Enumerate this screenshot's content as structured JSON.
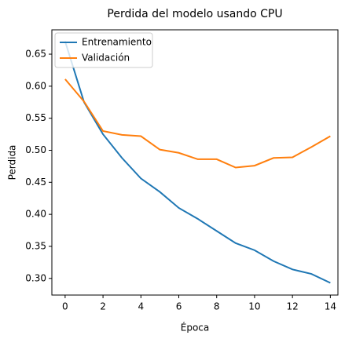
{
  "chart_data": {
    "type": "line",
    "title": "Perdida del modelo usando CPU",
    "xlabel": "Época",
    "ylabel": "Perdida",
    "x": [
      0,
      1,
      2,
      3,
      4,
      5,
      6,
      7,
      8,
      9,
      10,
      11,
      12,
      13,
      14
    ],
    "series": [
      {
        "name": "Entrenamiento",
        "color": "#1f77b4",
        "values": [
          0.67,
          0.575,
          0.525,
          0.488,
          0.456,
          0.435,
          0.41,
          0.393,
          0.374,
          0.355,
          0.344,
          0.327,
          0.314,
          0.307,
          0.293
        ]
      },
      {
        "name": "Validación",
        "color": "#ff7f0e",
        "values": [
          0.611,
          0.576,
          0.53,
          0.524,
          0.522,
          0.501,
          0.496,
          0.486,
          0.486,
          0.473,
          0.476,
          0.488,
          0.489,
          0.505,
          0.522
        ]
      }
    ],
    "xlim": [
      -0.7,
      14.4
    ],
    "xticks": [
      0,
      2,
      4,
      6,
      8,
      10,
      12,
      14
    ],
    "ylim": [
      0.274,
      0.688
    ],
    "yticks": [
      {
        "value": 0.3,
        "label": "0.30"
      },
      0.35,
      {
        "value": 0.4,
        "label": "0.40"
      },
      0.45,
      {
        "value": 0.5,
        "label": "0.50"
      },
      0.55,
      {
        "value": 0.6,
        "label": "0.60"
      },
      0.65
    ],
    "legend": "upper left"
  }
}
